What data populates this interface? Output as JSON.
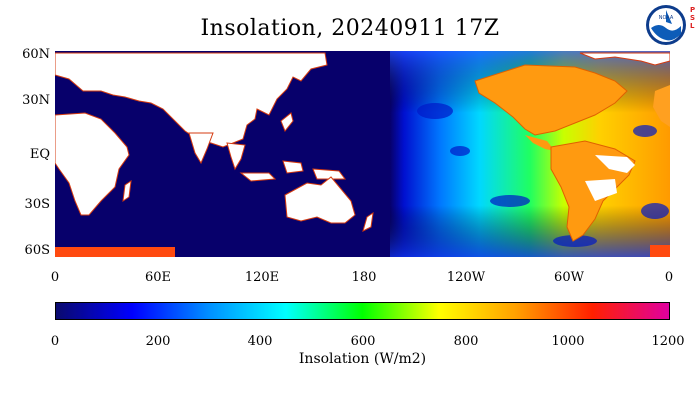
{
  "title": "Insolation, 20240911  17Z",
  "axes": {
    "lat_labels": [
      "60N",
      "30N",
      "EQ",
      "30S",
      "60S"
    ],
    "lon_labels": [
      "0",
      "60E",
      "120E",
      "180",
      "120W",
      "60W",
      "0"
    ]
  },
  "colorbar": {
    "ticks": [
      "0",
      "200",
      "400",
      "600",
      "800",
      "1000",
      "1200"
    ],
    "label": "Insolation (W/m2)",
    "colors": [
      "#0a0a6e",
      "#0000ff",
      "#0090ff",
      "#00ffff",
      "#00ff00",
      "#ffff00",
      "#ffa000",
      "#ff2000",
      "#e000a0"
    ]
  },
  "logo": {
    "icon": "noaa-logo",
    "text": "NOAA"
  },
  "badge": {
    "letters": [
      "P",
      "S",
      "L"
    ]
  },
  "colors": {
    "ocean_night": "#07006b",
    "land": "#ffffff"
  }
}
